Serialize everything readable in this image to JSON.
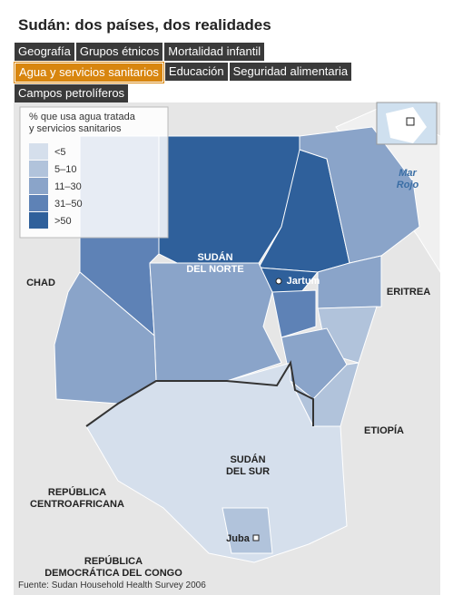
{
  "header": {
    "title": "Sudán: dos países, dos realidades"
  },
  "tabs": [
    {
      "label": "Geografía",
      "active": false
    },
    {
      "label": "Grupos étnicos",
      "active": false
    },
    {
      "label": "Mortalidad infantil",
      "active": false
    },
    {
      "label": "Agua y servicios sanitarios",
      "active": true
    },
    {
      "label": "Educación",
      "active": false
    },
    {
      "label": "Seguridad alimentaria",
      "active": false
    },
    {
      "label": "Campos petrolíferos",
      "active": false
    }
  ],
  "legend": {
    "title": [
      "% que usa agua tratada",
      "y servicios sanitarios"
    ],
    "items": [
      {
        "label": "<5",
        "color": "#d5dfec"
      },
      {
        "label": "5–10",
        "color": "#b1c3db"
      },
      {
        "label": "11–30",
        "color": "#8aa4c9"
      },
      {
        "label": "31–50",
        "color": "#5e82b6"
      },
      {
        "label": ">50",
        "color": "#2f609b"
      }
    ]
  },
  "map": {
    "labels": [
      {
        "lines": [
          "CHAD"
        ]
      },
      {
        "lines": [
          "SUDÁN",
          "DEL NORTE"
        ]
      },
      {
        "lines": [
          "Jartum"
        ]
      },
      {
        "lines": [
          "ERITREA"
        ]
      },
      {
        "lines": [
          "ETIOPÍA"
        ]
      },
      {
        "lines": [
          "SUDÁN",
          "DEL SUR"
        ]
      },
      {
        "lines": [
          "REPÚBLICA",
          "CENTROAFRICANA"
        ]
      },
      {
        "lines": [
          "Juba"
        ]
      },
      {
        "lines": [
          "REPÚBLICA",
          "DEMOCRÁTICA DEL CONGO"
        ]
      },
      {
        "lines": [
          "Mar",
          "Rojo"
        ]
      }
    ]
  },
  "footer": {
    "source": "Fuente: Sudan Household Health Survey 2006"
  }
}
